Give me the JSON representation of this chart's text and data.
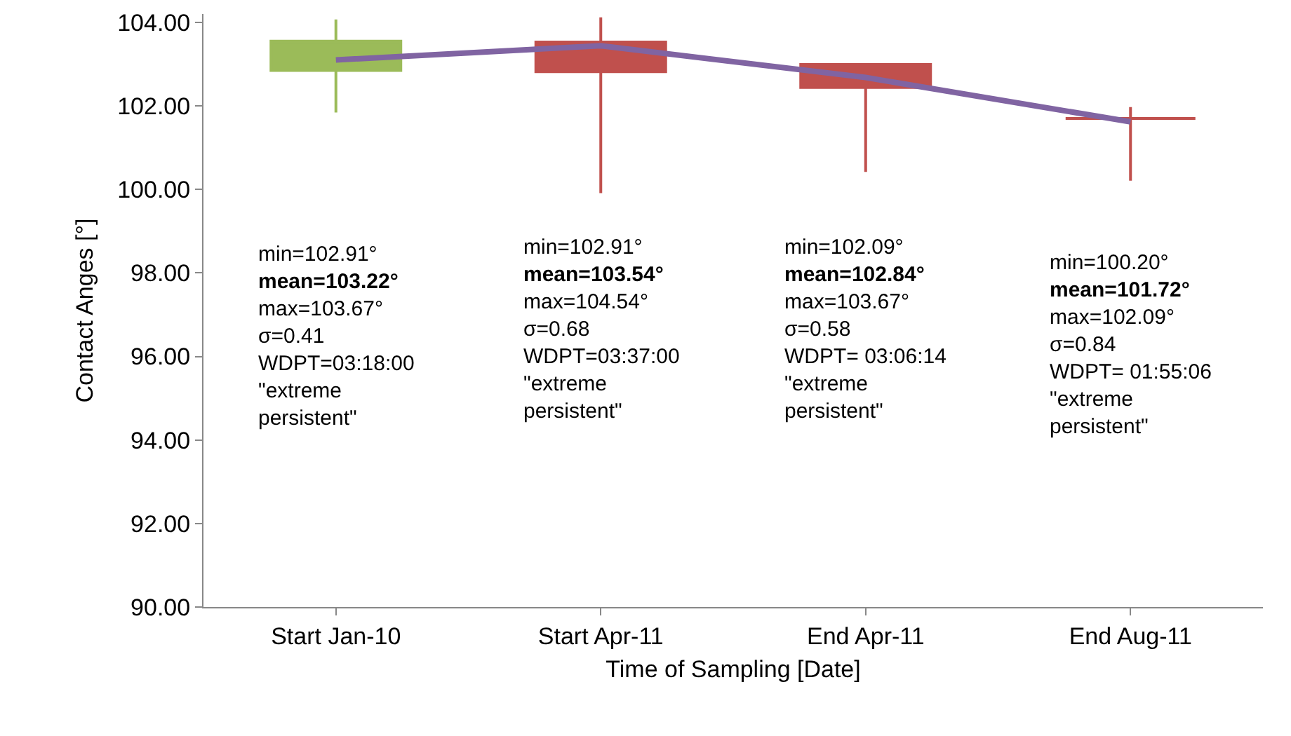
{
  "chart_data": {
    "type": "candlestick",
    "xlabel": "Time of Sampling [Date]",
    "ylabel": "Contact Anges [°]",
    "categories": [
      "Start Jan-10",
      "Start Apr-11",
      "End Apr-11",
      "End Aug-11"
    ],
    "ohlc": [
      [
        102.85,
        104.07,
        101.84,
        103.55
      ],
      [
        103.53,
        104.12,
        99.91,
        102.82
      ],
      [
        102.99,
        102.99,
        100.42,
        102.44
      ],
      [
        101.7,
        101.97,
        100.21,
        101.7
      ]
    ],
    "colors": [
      "#9bbb59",
      "#c0504d",
      "#c0504d",
      "#c0504d"
    ],
    "series": [
      {
        "type": "line",
        "color": "#8064a2",
        "values": [
          103.1,
          103.44,
          102.68,
          101.62
        ]
      }
    ],
    "marker": "none",
    "grid": false,
    "ylim": [
      90,
      104.2
    ],
    "yticks": [
      {
        "value": 90,
        "label": "90.00"
      },
      {
        "value": 92,
        "label": "92.00"
      },
      {
        "value": 94,
        "label": "94.00"
      },
      {
        "value": 96,
        "label": "96.00"
      },
      {
        "value": 98,
        "label": "98.00"
      },
      {
        "value": 100,
        "label": "100.00"
      },
      {
        "value": 102,
        "label": "102.00"
      },
      {
        "value": 104,
        "label": "104.00"
      }
    ],
    "annotations": [
      "min=102.91°\nmean=103.22°\nmax=103.67°\nσ=0.41\nWDPT=03:18:00\n\"extreme\npersistent\"",
      "min=102.91°\nmean=103.54°\nmax=104.54°\nσ=0.68\nWDPT=03:37:00\n\"extreme\npersistent\"",
      "min=102.09°\nmean=102.84°\nmax=103.67°\nσ=0.58\nWDPT= 03:06:14\n\"extreme\npersistent\"",
      "min=100.20°\nmean=101.72°\nmax=102.09°\nσ=0.84\nWDPT= 01:55:06\n\"extreme\npersistent\""
    ]
  }
}
